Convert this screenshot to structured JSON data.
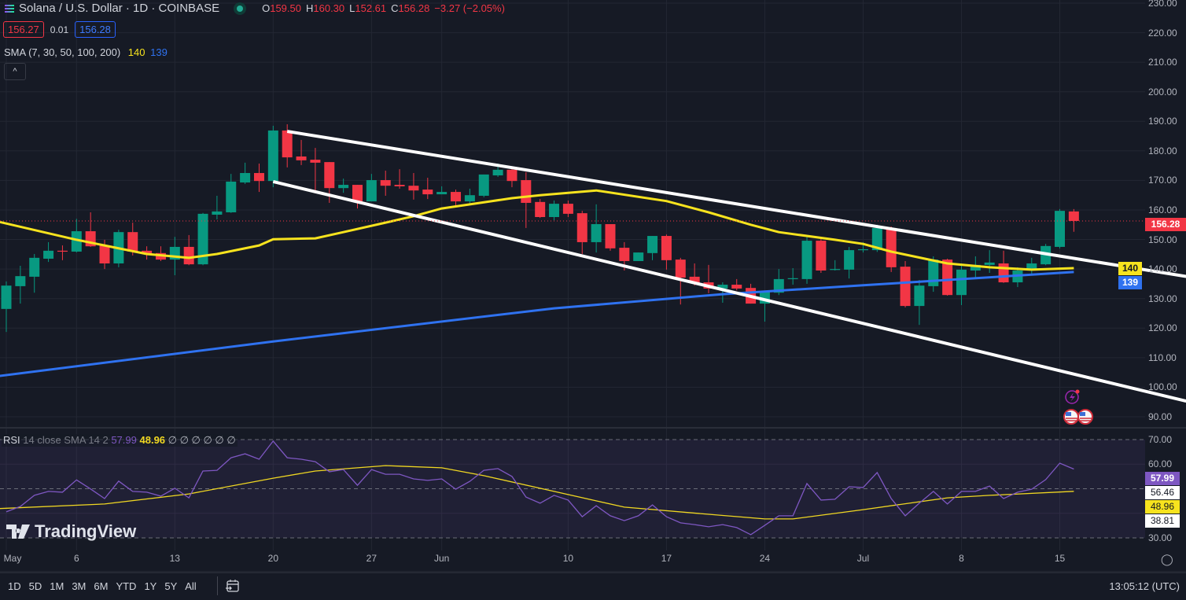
{
  "header": {
    "symbol_title": "Solana / U.S. Dollar · 1D · COINBASE",
    "market_status": "open",
    "ohlc": {
      "o_label": "O",
      "o": "159.50",
      "h_label": "H",
      "h": "160.30",
      "l_label": "L",
      "l": "152.61",
      "c_label": "C",
      "c": "156.28",
      "change": "−3.27 (−2.05%)"
    },
    "bid": "156.27",
    "spread": "0.01",
    "ask": "156.28",
    "sma_legend": "SMA (7, 30, 50, 100, 200)",
    "sma_val_yellow": "140",
    "sma_val_blue": "139",
    "collapse_icon": "chevron-up-icon"
  },
  "rsi_legend": {
    "label": "RSI",
    "params": "14 close SMA 14 2",
    "rsi": "57.99",
    "rsi_sma": "48.96",
    "empties": "∅ ∅ ∅ ∅ ∅ ∅"
  },
  "logo": "TradingView",
  "price_axis": [
    "230.00",
    "220.00",
    "210.00",
    "200.00",
    "190.00",
    "180.00",
    "170.00",
    "160.00",
    "150.00",
    "140.00",
    "130.00",
    "120.00",
    "110.00",
    "100.00",
    "90.00"
  ],
  "price_tags": {
    "last": "156.28",
    "sma_yellow": "140",
    "sma_blue": "139"
  },
  "rsi_axis": [
    "70.00",
    "60.00",
    "30.00"
  ],
  "rsi_tags": {
    "rsi": "57.99",
    "upper": "56.46",
    "sma": "48.96",
    "lower": "38.81"
  },
  "time_axis": [
    "May",
    "6",
    "13",
    "20",
    "27",
    "Jun",
    "10",
    "17",
    "24",
    "Jul",
    "8",
    "15"
  ],
  "bottom": {
    "ranges": [
      "1D",
      "5D",
      "1M",
      "3M",
      "6M",
      "YTD",
      "1Y",
      "5Y",
      "All"
    ],
    "clock": "13:05:12 (UTC)"
  },
  "colors": {
    "background": "#161a25",
    "up": "#089981",
    "down": "#f23645",
    "sma_yellow": "#f7e31e",
    "sma_blue": "#2f72f0",
    "trendline": "#ffffff",
    "rsi": "#7e57c2",
    "rsi_sma": "#f0d722"
  },
  "chart_data": {
    "type": "candlestick",
    "symbol": "Solana / U.S. Dollar",
    "interval": "1D",
    "ylim": [
      87,
      232
    ],
    "grid": true,
    "candles_fields": [
      "date",
      "open",
      "high",
      "low",
      "close"
    ],
    "candles": [
      [
        "May 1",
        126.5,
        135.8,
        118.7,
        134.4
      ],
      [
        "May 2",
        134.2,
        141.1,
        128.3,
        137.6
      ],
      [
        "May 3",
        137.4,
        145.1,
        132.0,
        143.8
      ],
      [
        "May 4",
        143.5,
        149.1,
        142.4,
        146.2
      ],
      [
        "May 5",
        146.2,
        148.0,
        143.0,
        145.9
      ],
      [
        "May 6",
        145.9,
        157.0,
        145.6,
        152.8
      ],
      [
        "May 7",
        152.8,
        159.2,
        147.5,
        147.7
      ],
      [
        "May 8",
        148.0,
        149.9,
        140.0,
        141.9
      ],
      [
        "May 9",
        141.9,
        153.3,
        140.6,
        152.5
      ],
      [
        "May 10",
        152.5,
        155.7,
        144.6,
        145.9
      ],
      [
        "May 11",
        146.2,
        147.7,
        143.2,
        145.1
      ],
      [
        "May 12",
        145.4,
        147.7,
        142.7,
        143.2
      ],
      [
        "May 13",
        143.2,
        150.9,
        137.9,
        147.5
      ],
      [
        "May 14",
        147.5,
        151.5,
        141.3,
        141.6
      ],
      [
        "May 15",
        141.6,
        159.0,
        141.3,
        158.7
      ],
      [
        "May 16",
        158.4,
        164.8,
        156.8,
        159.5
      ],
      [
        "May 17",
        159.2,
        172.2,
        159.0,
        169.6
      ],
      [
        "May 18",
        169.3,
        176.0,
        168.8,
        172.5
      ],
      [
        "May 19",
        172.5,
        175.7,
        166.1,
        169.8
      ],
      [
        "May 20",
        169.8,
        188.5,
        167.7,
        186.9
      ],
      [
        "May 21",
        186.9,
        189.0,
        174.4,
        177.8
      ],
      [
        "May 22",
        178.1,
        183.7,
        175.2,
        176.8
      ],
      [
        "May 23",
        177.0,
        181.0,
        165.6,
        176.0
      ],
      [
        "May 24",
        176.2,
        176.2,
        162.4,
        167.4
      ],
      [
        "May 25",
        167.4,
        170.6,
        165.8,
        168.5
      ],
      [
        "May 26",
        168.5,
        168.5,
        160.5,
        162.9
      ],
      [
        "May 27",
        162.9,
        172.2,
        162.9,
        170.1
      ],
      [
        "May 28",
        170.1,
        173.3,
        164.8,
        168.2
      ],
      [
        "May 29",
        168.5,
        173.8,
        167.2,
        168.0
      ],
      [
        "May 30",
        168.2,
        172.5,
        163.5,
        166.6
      ],
      [
        "May 31",
        166.9,
        170.9,
        163.7,
        165.3
      ],
      [
        "Jun 1",
        165.3,
        168.0,
        165.3,
        166.1
      ],
      [
        "Jun 2",
        166.1,
        166.9,
        161.3,
        162.9
      ],
      [
        "Jun 3",
        162.9,
        167.2,
        161.6,
        165.0
      ],
      [
        "Jun 4",
        164.8,
        172.0,
        164.3,
        172.0
      ],
      [
        "Jun 5",
        171.7,
        175.7,
        171.2,
        173.6
      ],
      [
        "Jun 6",
        173.6,
        174.6,
        167.7,
        169.8
      ],
      [
        "Jun 7",
        170.1,
        172.8,
        153.9,
        162.4
      ],
      [
        "Jun 8",
        162.7,
        163.7,
        157.3,
        157.6
      ],
      [
        "Jun 9",
        157.6,
        163.2,
        156.5,
        162.1
      ],
      [
        "Jun 10",
        162.1,
        163.2,
        157.6,
        158.7
      ],
      [
        "Jun 11",
        158.9,
        159.7,
        145.1,
        149.1
      ],
      [
        "Jun 12",
        149.1,
        161.9,
        145.6,
        155.2
      ],
      [
        "Jun 13",
        155.2,
        155.2,
        146.2,
        147.0
      ],
      [
        "Jun 14",
        147.2,
        149.1,
        139.5,
        142.7
      ],
      [
        "Jun 15",
        142.7,
        145.6,
        142.7,
        145.6
      ],
      [
        "Jun 16",
        145.4,
        151.2,
        143.0,
        151.2
      ],
      [
        "Jun 17",
        151.2,
        151.7,
        139.8,
        143.0
      ],
      [
        "Jun 18",
        143.2,
        143.8,
        128.0,
        137.1
      ],
      [
        "Jun 19",
        137.4,
        141.9,
        134.4,
        135.2
      ],
      [
        "Jun 20",
        135.5,
        141.4,
        131.8,
        133.4
      ],
      [
        "Jun 21",
        133.4,
        135.5,
        128.6,
        134.7
      ],
      [
        "Jun 22",
        134.7,
        136.6,
        132.8,
        133.4
      ],
      [
        "Jun 23",
        133.6,
        135.0,
        128.3,
        128.3
      ],
      [
        "Jun 24",
        128.3,
        132.6,
        122.2,
        132.3
      ],
      [
        "Jun 25",
        132.0,
        140.0,
        131.2,
        136.6
      ],
      [
        "Jun 26",
        136.6,
        140.3,
        134.7,
        136.9
      ],
      [
        "Jun 27",
        136.6,
        151.2,
        135.0,
        149.6
      ],
      [
        "Jun 28",
        149.6,
        150.7,
        138.7,
        139.5
      ],
      [
        "Jun 29",
        139.8,
        143.0,
        139.5,
        140.0
      ],
      [
        "Jun 30",
        139.8,
        147.5,
        136.8,
        146.4
      ],
      [
        "Jul 1",
        146.5,
        149.1,
        145.6,
        146.7
      ],
      [
        "Jul 2",
        146.4,
        155.0,
        145.8,
        153.9
      ],
      [
        "Jul 3",
        153.9,
        154.4,
        139.0,
        140.6
      ],
      [
        "Jul 4",
        140.8,
        142.7,
        127.0,
        127.5
      ],
      [
        "Jul 5",
        127.5,
        136.3,
        121.1,
        134.4
      ],
      [
        "Jul 6",
        134.2,
        144.3,
        132.3,
        143.2
      ],
      [
        "Jul 7",
        143.2,
        143.5,
        131.0,
        131.2
      ],
      [
        "Jul 8",
        131.2,
        141.9,
        127.8,
        139.8
      ],
      [
        "Jul 9",
        139.5,
        144.3,
        136.6,
        141.4
      ],
      [
        "Jul 10",
        141.4,
        146.4,
        138.7,
        142.2
      ],
      [
        "Jul 11",
        141.9,
        146.2,
        135.3,
        135.5
      ],
      [
        "Jul 12",
        135.5,
        140.6,
        133.9,
        139.5
      ],
      [
        "Jul 13",
        139.5,
        143.8,
        137.9,
        141.9
      ],
      [
        "Jul 14",
        141.6,
        148.5,
        141.3,
        147.8
      ],
      [
        "Jul 15",
        147.5,
        160.3,
        147.0,
        159.7
      ],
      [
        "Jul 16",
        159.5,
        160.3,
        152.61,
        156.28
      ]
    ],
    "sma_yellow": [
      [
        "Apr 30",
        156.5
      ],
      [
        "May 6",
        149.9
      ],
      [
        "May 11",
        145.1
      ],
      [
        "May 14",
        143.8
      ],
      [
        "May 16",
        145.1
      ],
      [
        "May 19",
        148.0
      ],
      [
        "May 20",
        150.1
      ],
      [
        "May 23",
        150.4
      ],
      [
        "May 25",
        152.5
      ],
      [
        "May 28",
        155.7
      ],
      [
        "May 30",
        157.9
      ],
      [
        "Jun 1",
        160.5
      ],
      [
        "Jun 6",
        164.0
      ],
      [
        "Jun 8",
        165.0
      ],
      [
        "Jun 12",
        166.6
      ],
      [
        "Jun 17",
        163.0
      ],
      [
        "Jun 20",
        159.2
      ],
      [
        "Jun 23",
        155.0
      ],
      [
        "Jun 25",
        152.5
      ],
      [
        "Jun 29",
        149.9
      ],
      [
        "Jul 1",
        148.5
      ],
      [
        "Jul 3",
        145.9
      ],
      [
        "Jul 7",
        141.9
      ],
      [
        "Jul 10",
        140.6
      ],
      [
        "Jul 13",
        139.8
      ],
      [
        "Jul 16",
        140.3
      ]
    ],
    "sma_blue": [
      [
        "Apr 30",
        103.5
      ],
      [
        "May 20",
        115.5
      ],
      [
        "Jun 9",
        126.7
      ],
      [
        "Jun 21",
        131.5
      ],
      [
        "Jul 1",
        134.5
      ],
      [
        "Jul 16",
        139.0
      ]
    ],
    "trendlines": [
      {
        "from": [
          "May 21",
          186.6
        ],
        "to": [
          "Jul 24",
          137.5
        ]
      },
      {
        "from": [
          "May 20",
          169.6
        ],
        "to": [
          "Jul 24",
          95.3
        ]
      }
    ],
    "rsi": {
      "ylim": [
        30,
        70
      ],
      "levels": [
        70,
        50,
        30
      ],
      "values": [
        40.6,
        42.8,
        47.3,
        48.9,
        48.6,
        53.6,
        49.9,
        46.0,
        53.1,
        48.9,
        48.6,
        47.0,
        50.2,
        46.3,
        57.2,
        57.5,
        62.6,
        64.2,
        62.0,
        69.4,
        62.6,
        62.0,
        61.0,
        56.9,
        57.8,
        51.4,
        57.8,
        55.9,
        55.9,
        54.0,
        53.4,
        54.0,
        49.8,
        53.0,
        57.5,
        58.2,
        55.0,
        46.6,
        44.1,
        47.3,
        45.4,
        38.6,
        43.1,
        39.0,
        37.0,
        39.0,
        43.4,
        38.6,
        36.1,
        35.4,
        34.5,
        35.4,
        34.2,
        31.3,
        35.1,
        39.0,
        39.0,
        52.1,
        45.4,
        45.7,
        50.8,
        50.5,
        56.6,
        46.0,
        39.0,
        44.1,
        48.9,
        43.8,
        48.9,
        48.9,
        51.1,
        46.0,
        48.6,
        49.8,
        53.7,
        60.4,
        57.99
      ],
      "sma": [
        [
          "Apr 30",
          41.8
        ],
        [
          "May 8",
          43.8
        ],
        [
          "May 14",
          47.9
        ],
        [
          "May 20",
          54.3
        ],
        [
          "May 23",
          57.2
        ],
        [
          "May 28",
          59.4
        ],
        [
          "Jun 1",
          58.5
        ],
        [
          "Jun 4",
          55.3
        ],
        [
          "Jun 9",
          48.9
        ],
        [
          "Jun 14",
          42.5
        ],
        [
          "Jun 20",
          39.6
        ],
        [
          "Jun 24",
          37.7
        ],
        [
          "Jun 26",
          37.7
        ],
        [
          "Jul 1",
          41.5
        ],
        [
          "Jul 7",
          46.3
        ],
        [
          "Jul 10",
          47.3
        ],
        [
          "Jul 16",
          48.96
        ]
      ]
    }
  }
}
